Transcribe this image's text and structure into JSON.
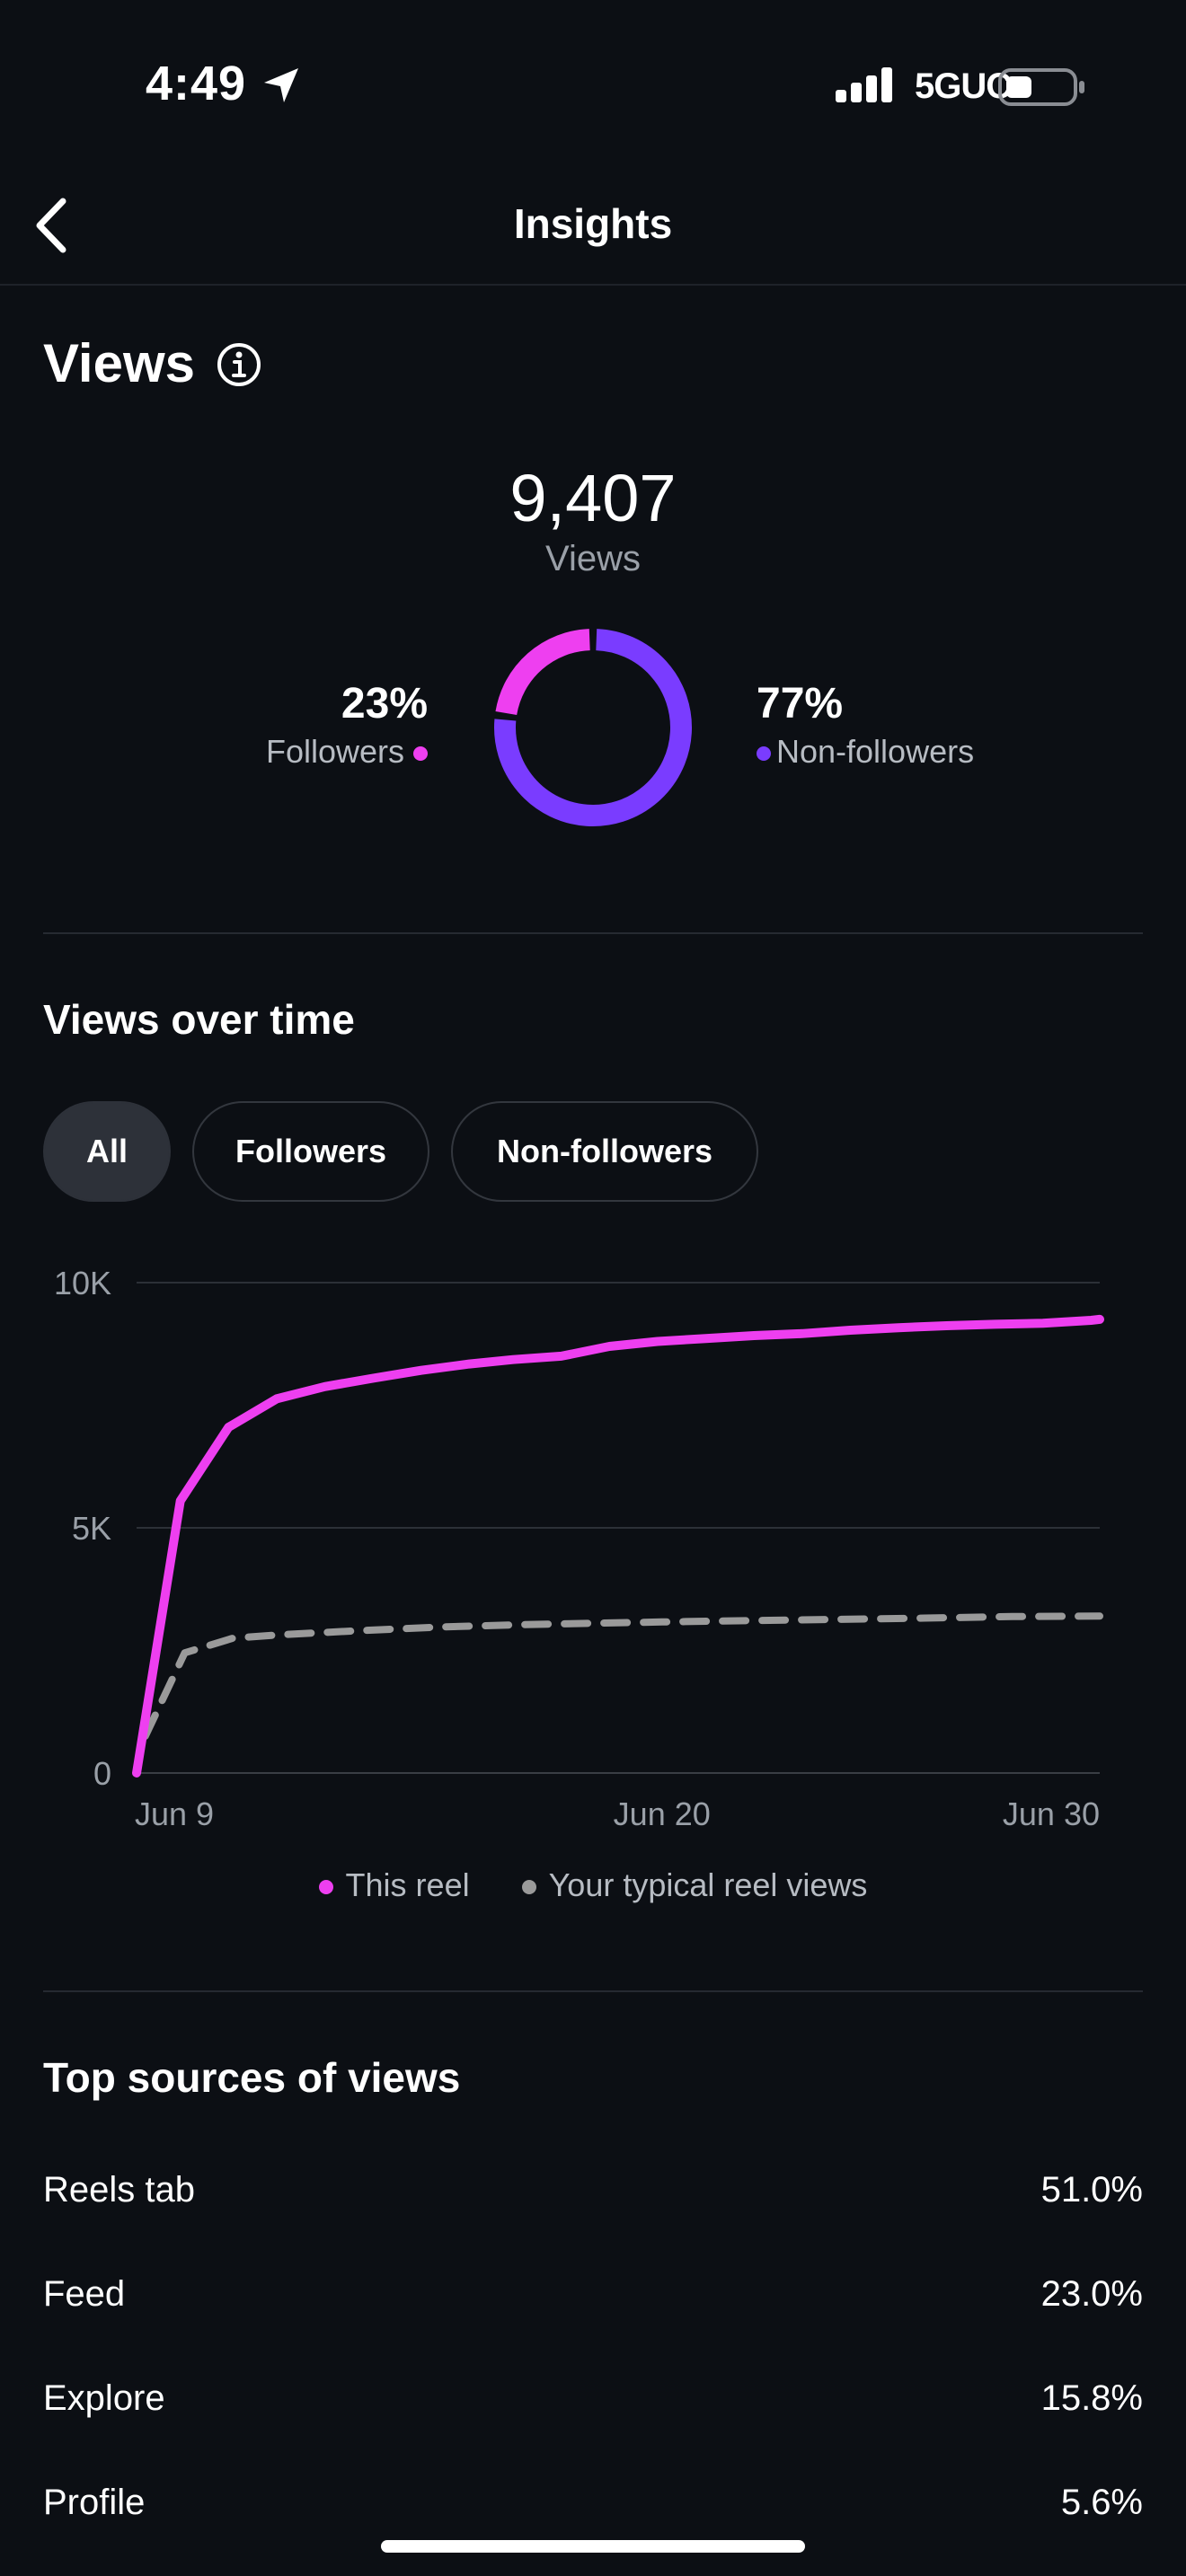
{
  "status_bar": {
    "time": "4:49",
    "network": "5GUC"
  },
  "header": {
    "title": "Insights",
    "back_icon": "chevron-left-icon"
  },
  "views": {
    "title": "Views",
    "info_icon": "info-icon",
    "total": "9,407",
    "total_label": "Views",
    "followers": {
      "percent": "23%",
      "label": "Followers",
      "value": 23,
      "color": "#ee3ff0"
    },
    "non_followers": {
      "percent": "77%",
      "label": "Non-followers",
      "value": 77,
      "color": "#7a3cff"
    }
  },
  "views_over_time": {
    "title": "Views over time",
    "filters": [
      {
        "label": "All",
        "active": true
      },
      {
        "label": "Followers",
        "active": false
      },
      {
        "label": "Non-followers",
        "active": false
      }
    ]
  },
  "chart_data": {
    "type": "line",
    "title": "",
    "xlabel": "",
    "ylabel": "",
    "x_min": 8.0,
    "x_max": 30,
    "ylim": [
      0,
      10000
    ],
    "y_ticks": [
      {
        "value": 0,
        "label": "0"
      },
      {
        "value": 5000,
        "label": "5K"
      },
      {
        "value": 10000,
        "label": "10K"
      }
    ],
    "x_ticks": [
      {
        "value": 9,
        "label": "Jun 9"
      },
      {
        "value": 20,
        "label": "Jun 20"
      },
      {
        "value": 30,
        "label": "Jun 30"
      }
    ],
    "grid": true,
    "legend": "bottom",
    "series": [
      {
        "name": "This reel",
        "color": "#ee3ff0",
        "style": "solid",
        "x": [
          8.0,
          9.0,
          10.1,
          11.2,
          12.3,
          13.4,
          14.5,
          15.6,
          16.6,
          17.7,
          18.8,
          19.9,
          21.0,
          22.1,
          23.2,
          24.3,
          25.4,
          26.5,
          27.6,
          28.7,
          29.8,
          30.0
        ],
        "values": [
          0,
          5550,
          7050,
          7630,
          7880,
          8050,
          8210,
          8340,
          8430,
          8500,
          8700,
          8800,
          8860,
          8920,
          8960,
          9030,
          9080,
          9120,
          9150,
          9170,
          9230,
          9250
        ]
      },
      {
        "name": "Your typical reel views",
        "color": "#9a9a9a",
        "style": "dashed",
        "x": [
          8.2,
          9.1,
          10.2,
          11.3,
          13.0,
          15.0,
          17.0,
          20.0,
          23.0,
          26.0,
          28.0,
          30.0
        ],
        "values": [
          750,
          2450,
          2750,
          2820,
          2900,
          2980,
          3030,
          3080,
          3120,
          3160,
          3190,
          3200
        ]
      }
    ]
  },
  "top_sources": {
    "title": "Top sources of views",
    "rows": [
      {
        "label": "Reels tab",
        "value": "51.0%"
      },
      {
        "label": "Feed",
        "value": "23.0%"
      },
      {
        "label": "Explore",
        "value": "15.8%"
      },
      {
        "label": "Profile",
        "value": "5.6%"
      }
    ]
  }
}
